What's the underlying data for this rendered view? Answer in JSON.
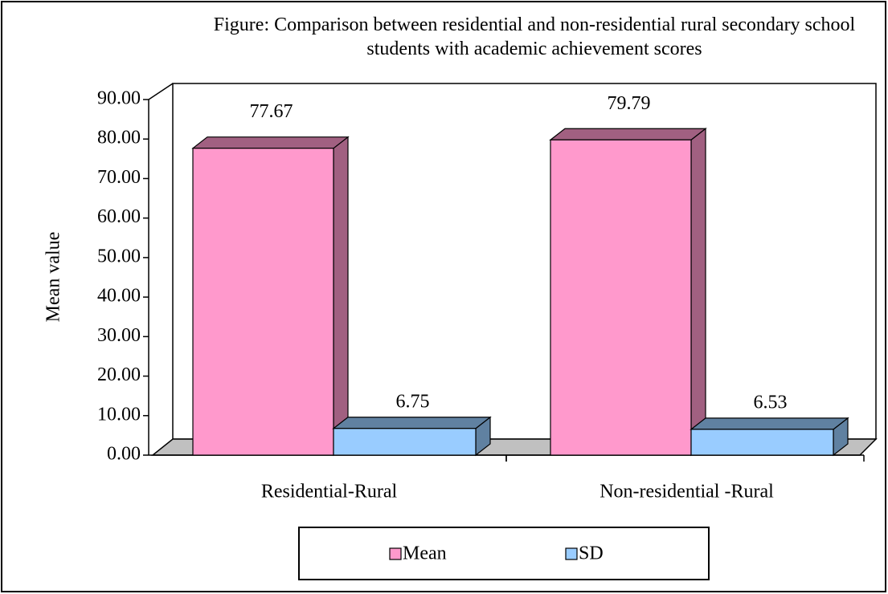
{
  "chart_data": {
    "type": "bar3d",
    "title": "Figure: Comparison  between residential and non-residential rural secondary school students with academic achievement scores",
    "y_label": "Mean value",
    "categories": [
      "Residential-Rural",
      "Non-residential -Rural"
    ],
    "series": [
      {
        "name": "Mean",
        "color": "#ff99cc",
        "values": [
          77.67,
          79.79
        ]
      },
      {
        "name": "SD",
        "color": "#99ccff",
        "values": [
          6.75,
          6.53
        ]
      }
    ],
    "ylim": [
      0,
      90
    ],
    "yticks": [
      {
        "value": 0,
        "label": "0.00"
      },
      {
        "value": 10,
        "label": "10.00"
      },
      {
        "value": 20,
        "label": "20.00"
      },
      {
        "value": 30,
        "label": "30.00"
      },
      {
        "value": 40,
        "label": "40.00"
      },
      {
        "value": 50,
        "label": "50.00"
      },
      {
        "value": 60,
        "label": "60.00"
      },
      {
        "value": 70,
        "label": "70.00"
      },
      {
        "value": 80,
        "label": "80.00"
      },
      {
        "value": 90,
        "label": "90.00"
      }
    ],
    "legend": "bottom",
    "grid": false
  }
}
